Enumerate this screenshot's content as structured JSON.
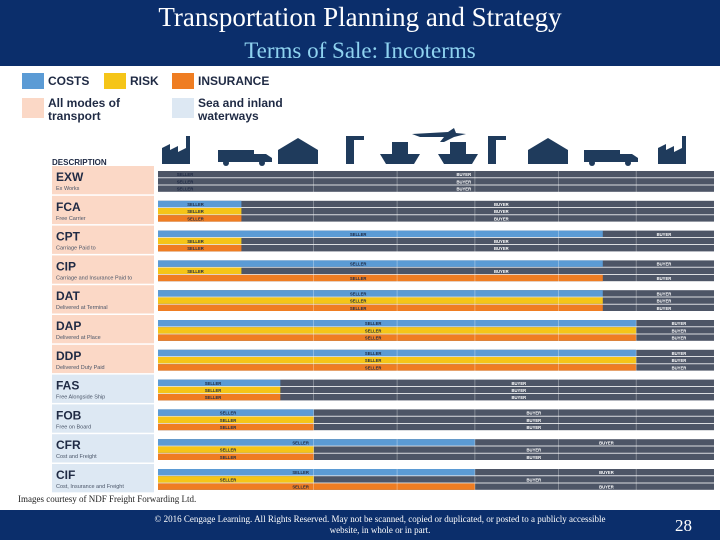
{
  "header": {
    "title": "Transportation Planning and Strategy",
    "subtitle": "Terms of Sale: Incoterms"
  },
  "legend": {
    "costs": {
      "label": "COSTS",
      "color": "#5b9bd5"
    },
    "risk": {
      "label": "RISK",
      "color": "#f5c518"
    },
    "insurance": {
      "label": "INSURANCE",
      "color": "#ef7d22"
    },
    "all_modes": {
      "label_line1": "All modes of",
      "label_line2": "transport",
      "color": "#fbd8c6"
    },
    "sea": {
      "label_line1": "Sea and inland",
      "label_line2": "waterways",
      "color": "#dde8f3"
    }
  },
  "description_header": "DESCRIPTION",
  "colors": {
    "seller": "#f5c518",
    "buyer": "#4d5566",
    "cost_seller": "#5b9bd5",
    "insurance": "#ef7d22"
  },
  "terms": [
    {
      "code": "EXW",
      "name": "Ex Works",
      "mode": "all",
      "bars": [
        {
          "kind": "costs",
          "split": 0.0,
          "seller_label": "SELLER",
          "buyer_label": "BUYER"
        },
        {
          "kind": "risk",
          "split": 0.0,
          "seller_label": "SELLER",
          "buyer_label": "BUYER"
        },
        {
          "kind": "insurance",
          "split": 0.0,
          "seller_label": "SELLER",
          "buyer_label": "BUYER"
        }
      ]
    },
    {
      "code": "FCA",
      "name": "Free Carrier",
      "mode": "all",
      "bars": [
        {
          "kind": "costs",
          "split": 0.15,
          "seller_label": "SELLER",
          "buyer_label": "BUYER"
        },
        {
          "kind": "risk",
          "split": 0.15,
          "seller_label": "SELLER",
          "buyer_label": "BUYER"
        },
        {
          "kind": "insurance",
          "split": 0.15,
          "seller_label": "SELLER",
          "buyer_label": "BUYER"
        }
      ]
    },
    {
      "code": "CPT",
      "name": "Carriage Paid to",
      "mode": "all",
      "bars": [
        {
          "kind": "costs",
          "split": 0.8,
          "seller_label": "SELLER",
          "buyer_label": "BUYER"
        },
        {
          "kind": "risk",
          "split": 0.15,
          "seller_label": "SELLER",
          "buyer_label": "BUYER"
        },
        {
          "kind": "insurance",
          "split": 0.15,
          "seller_label": "SELLER",
          "buyer_label": "BUYER"
        }
      ]
    },
    {
      "code": "CIP",
      "name": "Carriage and Insurance Paid to",
      "mode": "all",
      "bars": [
        {
          "kind": "costs",
          "split": 0.8,
          "seller_label": "SELLER",
          "buyer_label": "BUYER"
        },
        {
          "kind": "risk",
          "split": 0.15,
          "seller_label": "SELLER",
          "buyer_label": "BUYER"
        },
        {
          "kind": "insurance",
          "split": 0.8,
          "seller_label": "SELLER",
          "buyer_label": "BUYER"
        }
      ]
    },
    {
      "code": "DAT",
      "name": "Delivered at Terminal",
      "mode": "all",
      "bars": [
        {
          "kind": "costs",
          "split": 0.8,
          "seller_label": "SELLER",
          "buyer_label": "BUYER"
        },
        {
          "kind": "risk",
          "split": 0.8,
          "seller_label": "SELLER",
          "buyer_label": "BUYER"
        },
        {
          "kind": "insurance",
          "split": 0.8,
          "seller_label": "SELLER",
          "buyer_label": "BUYER"
        }
      ]
    },
    {
      "code": "DAP",
      "name": "Delivered at Place",
      "mode": "all",
      "bars": [
        {
          "kind": "costs",
          "split": 0.86,
          "seller_label": "SELLER",
          "buyer_label": "BUYER"
        },
        {
          "kind": "risk",
          "split": 0.86,
          "seller_label": "SELLER",
          "buyer_label": "BUYER"
        },
        {
          "kind": "insurance",
          "split": 0.86,
          "seller_label": "SELLER",
          "buyer_label": "BUYER"
        }
      ]
    },
    {
      "code": "DDP",
      "name": "Delivered Duty Paid",
      "mode": "all",
      "bars": [
        {
          "kind": "costs",
          "split": 0.86,
          "seller_label": "SELLER",
          "buyer_label": "BUYER"
        },
        {
          "kind": "risk",
          "split": 0.86,
          "seller_label": "SELLER",
          "buyer_label": "BUYER"
        },
        {
          "kind": "insurance",
          "split": 0.86,
          "seller_label": "SELLER",
          "buyer_label": "BUYER"
        }
      ]
    },
    {
      "code": "FAS",
      "name": "Free Alongside Ship",
      "mode": "sea",
      "bars": [
        {
          "kind": "costs",
          "split": 0.22,
          "seller_label": "SELLER",
          "buyer_label": "BUYER"
        },
        {
          "kind": "risk",
          "split": 0.22,
          "seller_label": "SELLER",
          "buyer_label": "BUYER"
        },
        {
          "kind": "insurance",
          "split": 0.22,
          "seller_label": "SELLER",
          "buyer_label": "BUYER"
        }
      ]
    },
    {
      "code": "FOB",
      "name": "Free on Board",
      "mode": "sea",
      "bars": [
        {
          "kind": "costs",
          "split": 0.28,
          "seller_label": "SELLER",
          "buyer_label": "BUYER"
        },
        {
          "kind": "risk",
          "split": 0.28,
          "seller_label": "SELLER",
          "buyer_label": "BUYER"
        },
        {
          "kind": "insurance",
          "split": 0.28,
          "seller_label": "SELLER",
          "buyer_label": "BUYER"
        }
      ]
    },
    {
      "code": "CFR",
      "name": "Cost and Freight",
      "mode": "sea",
      "bars": [
        {
          "kind": "costs",
          "split": 0.57,
          "seller_label": "SELLER",
          "buyer_label": "BUYER"
        },
        {
          "kind": "risk",
          "split": 0.28,
          "seller_label": "SELLER",
          "buyer_label": "BUYER"
        },
        {
          "kind": "insurance",
          "split": 0.28,
          "seller_label": "SELLER",
          "buyer_label": "BUYER"
        }
      ]
    },
    {
      "code": "CIF",
      "name": "Cost, Insurance and Freight",
      "mode": "sea",
      "bars": [
        {
          "kind": "costs",
          "split": 0.57,
          "seller_label": "SELLER",
          "buyer_label": "BUYER"
        },
        {
          "kind": "risk",
          "split": 0.28,
          "seller_label": "SELLER",
          "buyer_label": "BUYER"
        },
        {
          "kind": "insurance",
          "split": 0.57,
          "seller_label": "SELLER",
          "buyer_label": "BUYER"
        }
      ]
    }
  ],
  "image_credit": "Images courtesy of NDF Freight Forwarding Ltd.",
  "footer": {
    "copyright": "© 2016 Cengage Learning. All Rights Reserved. May not be scanned, copied or duplicated, or posted to a publicly accessible website, in whole or in part.",
    "page_number": "28"
  }
}
